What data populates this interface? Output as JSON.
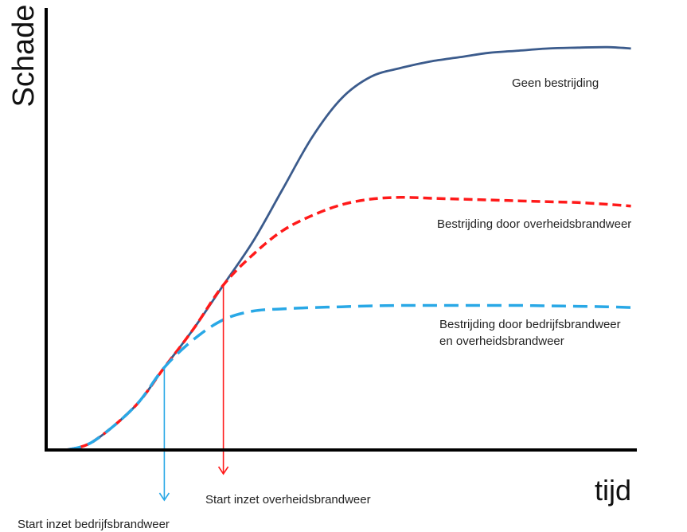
{
  "chart_data": {
    "type": "line",
    "title": "",
    "xlabel": "tijd",
    "ylabel": "Schade",
    "grid": false,
    "legend": "none",
    "xlim": [
      0,
      10
    ],
    "ylim": [
      0,
      10
    ],
    "series": [
      {
        "name": "Geen bestrijding",
        "color": "#3b5b8c",
        "style": "solid",
        "x": [
          0.35,
          0.8,
          1.5,
          2.0,
          2.5,
          3.0,
          3.5,
          4.0,
          4.5,
          5.0,
          5.5,
          6.0,
          6.5,
          7.0,
          7.5,
          8.0,
          8.5,
          9.0,
          9.5,
          9.9
        ],
        "y": [
          0.0,
          0.2,
          1.0,
          1.9,
          2.8,
          3.8,
          4.8,
          6.0,
          7.2,
          8.1,
          8.6,
          8.8,
          8.95,
          9.05,
          9.15,
          9.2,
          9.25,
          9.27,
          9.28,
          9.25
        ]
      },
      {
        "name": "Bestrijding door overheidsbrandweer",
        "color": "#ff1a1a",
        "style": "dashed",
        "x": [
          0.35,
          0.8,
          1.5,
          2.0,
          2.5,
          3.0,
          3.5,
          4.0,
          4.5,
          5.0,
          5.5,
          6.0,
          6.5,
          7.0,
          7.5,
          8.0,
          8.5,
          9.0,
          9.5,
          9.9
        ],
        "y": [
          0.0,
          0.2,
          1.0,
          1.9,
          2.8,
          3.8,
          4.5,
          5.05,
          5.4,
          5.65,
          5.78,
          5.82,
          5.8,
          5.78,
          5.76,
          5.74,
          5.72,
          5.7,
          5.66,
          5.62
        ]
      },
      {
        "name": "Bestrijding door bedrijfsbrandweer en overheidsbrandweer",
        "color": "#29a8e6",
        "style": "dashed",
        "x": [
          0.35,
          0.8,
          1.5,
          2.0,
          2.5,
          3.0,
          3.5,
          4.0,
          4.5,
          5.0,
          5.5,
          6.0,
          6.5,
          7.0,
          7.5,
          8.0,
          8.5,
          9.0,
          9.5,
          9.9
        ],
        "y": [
          0.0,
          0.2,
          1.0,
          1.9,
          2.55,
          3.0,
          3.2,
          3.25,
          3.28,
          3.3,
          3.32,
          3.33,
          3.33,
          3.33,
          3.33,
          3.33,
          3.32,
          3.31,
          3.3,
          3.28
        ]
      }
    ],
    "markers": [
      {
        "label": "Start inzet bedrijfsbrandweer",
        "x": 2.0,
        "color": "#29a8e6"
      },
      {
        "label": "Start inzet overheidsbrandweer",
        "x": 3.0,
        "color": "#ff1a1a"
      }
    ]
  }
}
